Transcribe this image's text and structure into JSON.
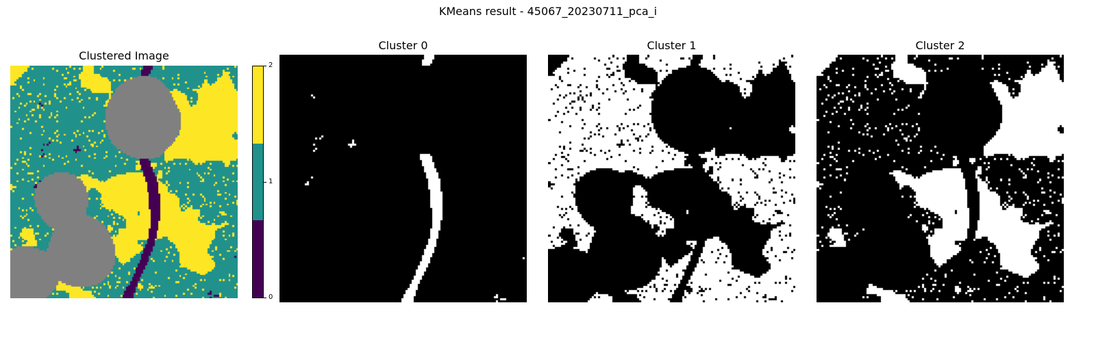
{
  "figure": {
    "suptitle": "KMeans result - 45067_20230711_pca_i"
  },
  "chart_data": [
    {
      "type": "heatmap",
      "title": "Clustered Image",
      "colormap": "viridis",
      "levels": [
        0,
        1,
        2
      ],
      "level_colors": [
        "#440154",
        "#21918c",
        "#fde725"
      ],
      "masked_color": "#808080",
      "colorbar": {
        "ticks": [
          "0",
          "1",
          "2"
        ],
        "segments": [
          "#fde725",
          "#21918c",
          "#440154"
        ]
      }
    },
    {
      "type": "heatmap",
      "title": "Cluster 0",
      "colormap": "binary mask",
      "colors": [
        "#000000",
        "#ffffff"
      ]
    },
    {
      "type": "heatmap",
      "title": "Cluster 1",
      "colormap": "binary mask",
      "colors": [
        "#000000",
        "#ffffff"
      ]
    },
    {
      "type": "heatmap",
      "title": "Cluster 2",
      "colormap": "binary mask",
      "colors": [
        "#000000",
        "#ffffff"
      ]
    }
  ]
}
